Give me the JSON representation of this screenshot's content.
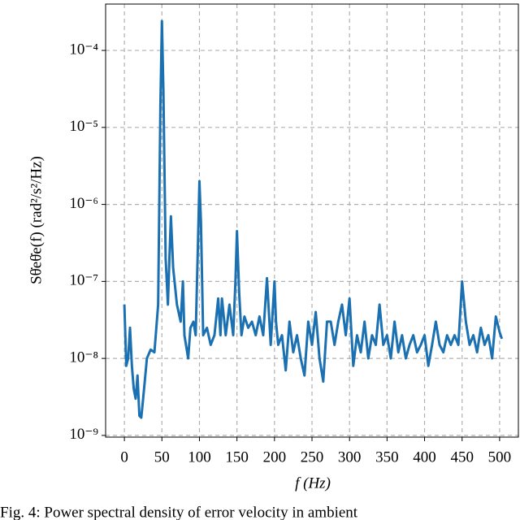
{
  "chart_data": {
    "type": "line",
    "xlabel": "f (Hz)",
    "ylabel": "Sθ̇eθ̇e(f) (rad²/s²/Hz)",
    "caption": "Fig. 4: Power spectral density of error velocity in ambient",
    "color": "#1a70b0",
    "log_y": true,
    "grid": true,
    "xlim": [
      -25,
      525
    ],
    "ylim": [
      9.5e-10,
      0.0004
    ],
    "xticks": [
      0,
      50,
      100,
      150,
      200,
      250,
      300,
      350,
      400,
      450,
      500
    ],
    "yticks": [
      {
        "value": 1e-09,
        "label": "10⁻⁹"
      },
      {
        "value": 1e-08,
        "label": "10⁻⁸"
      },
      {
        "value": 1e-07,
        "label": "10⁻⁷"
      },
      {
        "value": 1e-06,
        "label": "10⁻⁶"
      },
      {
        "value": 1e-05,
        "label": "10⁻⁵"
      },
      {
        "value": 0.0001,
        "label": "10⁻⁴"
      }
    ],
    "x": [
      0,
      2.5,
      5,
      7.5,
      10,
      12.5,
      15,
      17.5,
      20,
      22.5,
      25,
      30,
      35,
      40,
      45,
      48,
      50,
      52,
      55,
      58,
      60,
      62,
      65,
      70,
      75,
      78,
      80,
      85,
      88,
      92,
      95,
      98,
      100,
      102,
      105,
      110,
      115,
      120,
      125,
      128,
      130,
      135,
      140,
      145,
      148,
      150,
      153,
      156,
      160,
      165,
      170,
      175,
      180,
      185,
      190,
      195,
      200,
      202,
      205,
      210,
      215,
      220,
      225,
      230,
      235,
      240,
      245,
      250,
      255,
      260,
      265,
      270,
      275,
      280,
      285,
      290,
      295,
      300,
      305,
      310,
      315,
      320,
      325,
      330,
      335,
      340,
      345,
      350,
      355,
      360,
      365,
      370,
      375,
      380,
      385,
      390,
      395,
      400,
      405,
      410,
      415,
      420,
      425,
      430,
      435,
      440,
      445,
      450,
      455,
      460,
      465,
      470,
      475,
      480,
      485,
      490,
      495,
      500,
      503
    ],
    "values": [
      5e-08,
      8e-09,
      1e-08,
      2.5e-08,
      8e-09,
      4e-09,
      3e-09,
      6e-09,
      1.8e-09,
      1.7e-09,
      3e-09,
      1e-08,
      1.3e-08,
      1.2e-08,
      5e-08,
      2e-05,
      0.00024,
      3e-05,
      2e-07,
      5e-08,
      2e-07,
      7e-07,
      1.5e-07,
      5e-08,
      3e-08,
      1e-07,
      2e-08,
      1e-08,
      2.5e-08,
      3e-08,
      2e-08,
      3e-07,
      2e-06,
      6e-07,
      2e-08,
      2.5e-08,
      1.5e-08,
      2e-08,
      6e-08,
      2e-08,
      6e-08,
      2e-08,
      5e-08,
      2e-08,
      1e-07,
      4.5e-07,
      7e-08,
      2e-08,
      3.5e-08,
      2.5e-08,
      3e-08,
      2e-08,
      3.5e-08,
      2e-08,
      1.1e-07,
      1.5e-08,
      1e-07,
      3e-08,
      1.5e-08,
      2e-08,
      7e-09,
      3e-08,
      1.2e-08,
      2e-08,
      1e-08,
      6e-09,
      3e-08,
      1.5e-08,
      4e-08,
      1e-08,
      5e-09,
      3e-08,
      3e-08,
      1.5e-08,
      3e-08,
      5e-08,
      2e-08,
      6e-08,
      8e-09,
      2e-08,
      1.2e-08,
      3e-08,
      1e-08,
      2e-08,
      1.5e-08,
      5e-08,
      1.5e-08,
      2e-08,
      1e-08,
      3e-08,
      1.2e-08,
      2e-08,
      1e-08,
      1.5e-08,
      2e-08,
      1.2e-08,
      1.5e-08,
      2e-08,
      8e-09,
      1.5e-08,
      3e-08,
      1.5e-08,
      1.2e-08,
      2e-08,
      1.5e-08,
      2e-08,
      1.5e-08,
      1e-07,
      3e-08,
      1.5e-08,
      2e-08,
      1.2e-08,
      2.5e-08,
      1.5e-08,
      2e-08,
      1e-08,
      3.5e-08,
      2.2e-08,
      1.8e-08
    ]
  }
}
